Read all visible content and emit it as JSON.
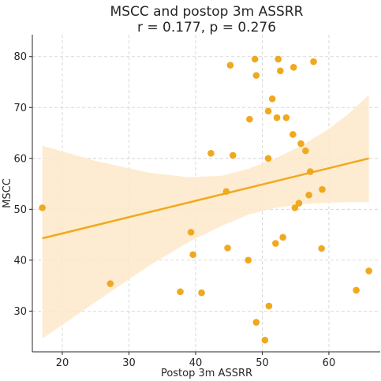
{
  "chart_data": {
    "type": "scatter",
    "title": "MSCC and postop 3m ASSRR",
    "subtitle": "r = 0.177, p = 0.276",
    "xlabel": "Postop 3m ASSRR",
    "ylabel": "MSCC",
    "xlim": [
      15.5,
      67.7
    ],
    "ylim": [
      22,
      84.3
    ],
    "xticks": [
      20,
      30,
      40,
      50,
      60
    ],
    "yticks": [
      30,
      40,
      50,
      60,
      70,
      80
    ],
    "grid": true,
    "colors": {
      "points": "#f0a91e",
      "regression_line": "#f0a91e",
      "confidence_band": "#fde9c9"
    },
    "points": [
      {
        "x": 17.0,
        "y": 50.3
      },
      {
        "x": 27.2,
        "y": 35.4
      },
      {
        "x": 37.7,
        "y": 33.8
      },
      {
        "x": 39.3,
        "y": 45.5
      },
      {
        "x": 39.6,
        "y": 41.1
      },
      {
        "x": 40.9,
        "y": 33.6
      },
      {
        "x": 42.3,
        "y": 61.0
      },
      {
        "x": 44.6,
        "y": 53.5
      },
      {
        "x": 44.8,
        "y": 42.4
      },
      {
        "x": 45.2,
        "y": 78.3
      },
      {
        "x": 45.6,
        "y": 60.6
      },
      {
        "x": 47.9,
        "y": 40.0
      },
      {
        "x": 48.1,
        "y": 67.7
      },
      {
        "x": 48.9,
        "y": 79.5
      },
      {
        "x": 49.1,
        "y": 76.3
      },
      {
        "x": 49.1,
        "y": 27.8
      },
      {
        "x": 50.4,
        "y": 24.3
      },
      {
        "x": 50.9,
        "y": 60.0
      },
      {
        "x": 50.9,
        "y": 69.3
      },
      {
        "x": 51.0,
        "y": 31.0
      },
      {
        "x": 51.5,
        "y": 71.7
      },
      {
        "x": 52.0,
        "y": 43.3
      },
      {
        "x": 52.2,
        "y": 68.0
      },
      {
        "x": 52.4,
        "y": 79.5
      },
      {
        "x": 52.7,
        "y": 77.2
      },
      {
        "x": 53.1,
        "y": 44.5
      },
      {
        "x": 53.6,
        "y": 68.0
      },
      {
        "x": 54.6,
        "y": 64.7
      },
      {
        "x": 54.7,
        "y": 77.9
      },
      {
        "x": 54.9,
        "y": 50.3
      },
      {
        "x": 55.5,
        "y": 51.2
      },
      {
        "x": 55.8,
        "y": 62.9
      },
      {
        "x": 56.5,
        "y": 61.5
      },
      {
        "x": 57.0,
        "y": 52.8
      },
      {
        "x": 57.2,
        "y": 57.4
      },
      {
        "x": 57.7,
        "y": 79.0
      },
      {
        "x": 58.9,
        "y": 42.3
      },
      {
        "x": 59.0,
        "y": 53.9
      },
      {
        "x": 64.1,
        "y": 34.1
      },
      {
        "x": 66.0,
        "y": 37.9
      }
    ],
    "regression": {
      "line": [
        {
          "x": 17.0,
          "y": 44.3
        },
        {
          "x": 66.0,
          "y": 60.0
        }
      ],
      "ci_upper": [
        {
          "x": 17.0,
          "y": 62.5
        },
        {
          "x": 25.0,
          "y": 59.5
        },
        {
          "x": 33.0,
          "y": 57.2
        },
        {
          "x": 39.0,
          "y": 56.3
        },
        {
          "x": 44.0,
          "y": 56.6
        },
        {
          "x": 48.0,
          "y": 58.0
        },
        {
          "x": 52.0,
          "y": 60.0
        },
        {
          "x": 56.0,
          "y": 62.6
        },
        {
          "x": 60.0,
          "y": 65.8
        },
        {
          "x": 63.0,
          "y": 68.8
        },
        {
          "x": 66.0,
          "y": 72.5
        }
      ],
      "ci_lower": [
        {
          "x": 17.0,
          "y": 24.6
        },
        {
          "x": 25.0,
          "y": 31.8
        },
        {
          "x": 33.0,
          "y": 38.9
        },
        {
          "x": 39.0,
          "y": 43.6
        },
        {
          "x": 44.0,
          "y": 46.8
        },
        {
          "x": 48.0,
          "y": 49.0
        },
        {
          "x": 52.0,
          "y": 50.3
        },
        {
          "x": 56.0,
          "y": 51.0
        },
        {
          "x": 60.0,
          "y": 51.3
        },
        {
          "x": 63.0,
          "y": 51.4
        },
        {
          "x": 66.0,
          "y": 51.4
        }
      ]
    }
  }
}
